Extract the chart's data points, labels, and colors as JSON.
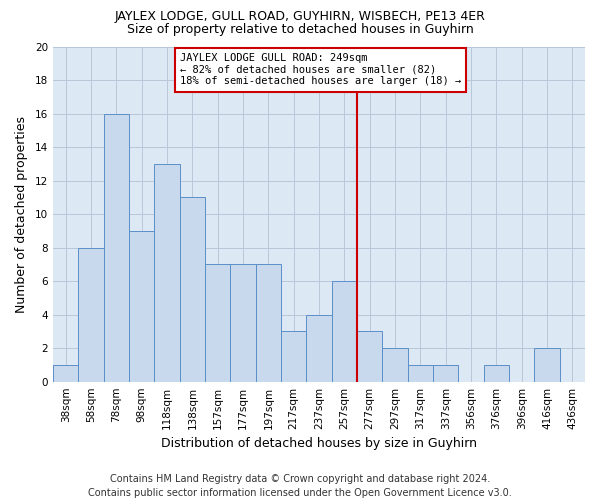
{
  "title": "JAYLEX LODGE, GULL ROAD, GUYHIRN, WISBECH, PE13 4ER",
  "subtitle": "Size of property relative to detached houses in Guyhirn",
  "xlabel": "Distribution of detached houses by size in Guyhirn",
  "ylabel": "Number of detached properties",
  "categories": [
    "38sqm",
    "58sqm",
    "78sqm",
    "98sqm",
    "118sqm",
    "138sqm",
    "157sqm",
    "177sqm",
    "197sqm",
    "217sqm",
    "237sqm",
    "257sqm",
    "277sqm",
    "297sqm",
    "317sqm",
    "337sqm",
    "356sqm",
    "376sqm",
    "396sqm",
    "416sqm",
    "436sqm"
  ],
  "values": [
    1,
    8,
    16,
    9,
    13,
    11,
    7,
    7,
    7,
    3,
    4,
    6,
    3,
    2,
    1,
    1,
    0,
    1,
    0,
    2,
    0
  ],
  "bar_color": "#c8d9ee",
  "bar_edge_color": "#5b8fc9",
  "vline_x": 11.5,
  "vline_color": "#cc0000",
  "annotation_text": "JAYLEX LODGE GULL ROAD: 249sqm\n← 82% of detached houses are smaller (82)\n18% of semi-detached houses are larger (18) →",
  "annotation_box_color": "#ffffff",
  "annotation_box_edge": "#cc0000",
  "ylim": [
    0,
    20
  ],
  "yticks": [
    0,
    2,
    4,
    6,
    8,
    10,
    12,
    14,
    16,
    18,
    20
  ],
  "footer": "Contains HM Land Registry data © Crown copyright and database right 2024.\nContains public sector information licensed under the Open Government Licence v3.0.",
  "plot_bg_color": "#dde8f5",
  "fig_bg_color": "#ffffff",
  "grid_color": "#b8c8d8",
  "title_fontsize": 9,
  "subtitle_fontsize": 9,
  "ylabel_fontsize": 9,
  "xlabel_fontsize": 9,
  "tick_fontsize": 7.5,
  "annot_fontsize": 7.5,
  "footer_fontsize": 7
}
